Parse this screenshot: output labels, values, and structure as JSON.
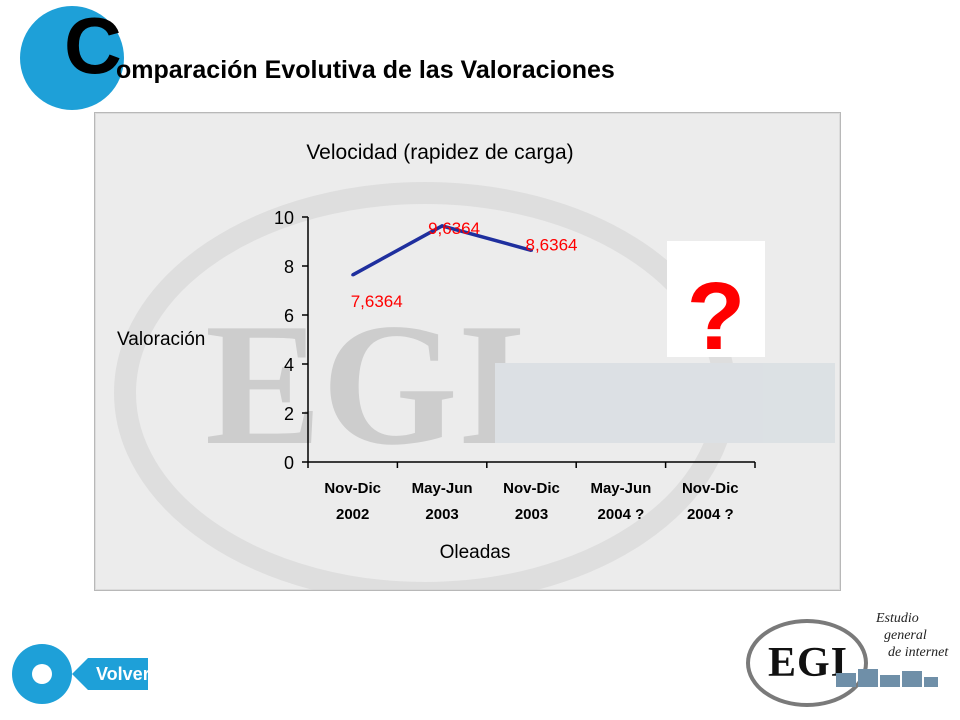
{
  "header": {
    "big_letter": "C",
    "title_rest": "omparación Evolutiva de las Valoraciones"
  },
  "chart_data": {
    "type": "line",
    "title": "Velocidad (rapidez de carga)",
    "xlabel": "Oleadas",
    "ylabel": "Valoración",
    "categories": [
      [
        "Nov-Dic",
        "2002"
      ],
      [
        "May-Jun",
        "2003"
      ],
      [
        "Nov-Dic",
        "2003"
      ],
      [
        "May-Jun",
        "2004 ?"
      ],
      [
        "Nov-Dic",
        "2004 ?"
      ]
    ],
    "series": [
      {
        "values": [
          7.6364,
          9.6364,
          8.6364,
          null,
          null
        ],
        "color": "#1f2f9e"
      }
    ],
    "data_labels": [
      "7,6364",
      "9,6364",
      "8,6364"
    ],
    "data_label_color": "#ff0000",
    "yticks": [
      0,
      2,
      4,
      6,
      8,
      10
    ],
    "ylim": [
      0,
      10
    ],
    "grid": false,
    "annotation": "?"
  },
  "watermark_text": "EGI",
  "nav": {
    "back_label": "Volver"
  },
  "logo": {
    "mark": "EGI",
    "line1": "Estudio",
    "line2": "general",
    "line3": "de internet"
  },
  "colors": {
    "accent": "#1ea0d8",
    "line": "#1f2f9e",
    "label": "#ff0000",
    "panel": "#ececec"
  }
}
